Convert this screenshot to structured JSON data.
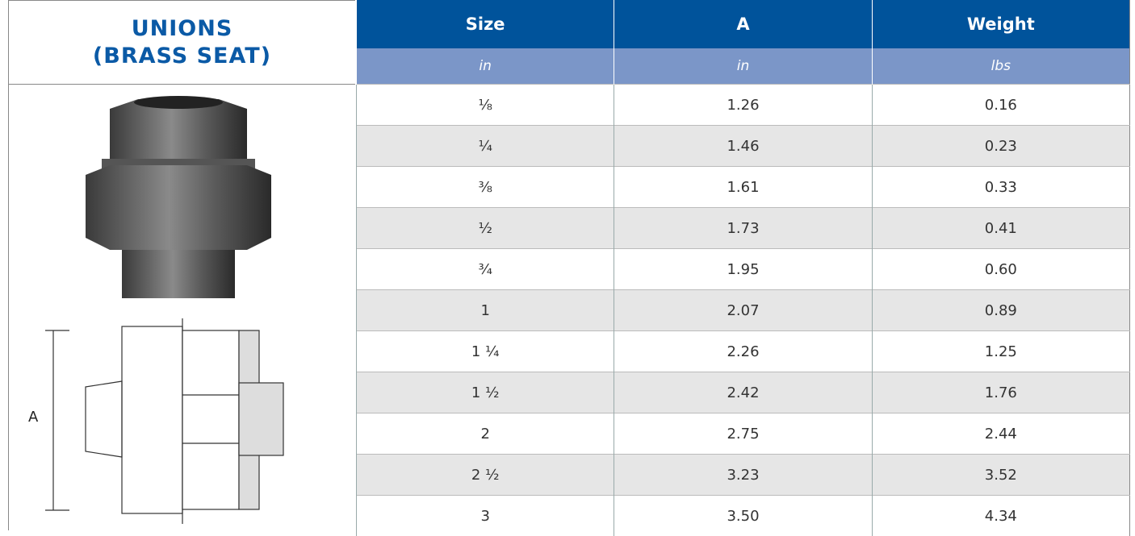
{
  "header": {
    "title_lines": [
      "UNIONS",
      "(BRASS SEAT)"
    ]
  },
  "table": {
    "columns": [
      {
        "name": "Size",
        "unit": "in"
      },
      {
        "name": "A",
        "unit": "in"
      },
      {
        "name": "Weight",
        "unit": "lbs"
      }
    ],
    "rows": [
      [
        "⅛",
        "1.26",
        "0.16"
      ],
      [
        "¼",
        "1.46",
        "0.23"
      ],
      [
        "⅜",
        "1.61",
        "0.33"
      ],
      [
        "½",
        "1.73",
        "0.41"
      ],
      [
        "¾",
        "1.95",
        "0.60"
      ],
      [
        "1",
        "2.07",
        "0.89"
      ],
      [
        "1 ¼",
        "2.26",
        "1.25"
      ],
      [
        "1 ½",
        "2.42",
        "1.76"
      ],
      [
        "2",
        "2.75",
        "2.44"
      ],
      [
        "2 ½",
        "3.23",
        "3.52"
      ],
      [
        "3",
        "3.50",
        "4.34"
      ]
    ]
  },
  "drawing": {
    "dimension_label": "A"
  }
}
